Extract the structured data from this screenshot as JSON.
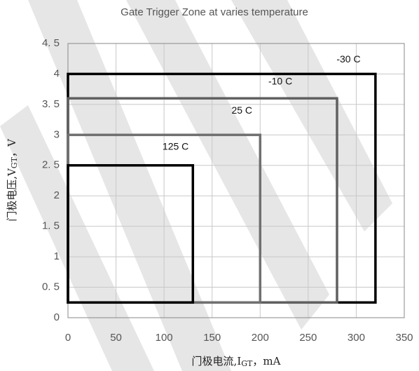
{
  "chart_data": {
    "type": "zone",
    "title": "Gate Trigger Zone at varies temperature",
    "xlabel": [
      "门极电流,I",
      "GT",
      "，mA"
    ],
    "ylabel": [
      "门极电压,V",
      "GT",
      "，V"
    ],
    "xlim": [
      0,
      350
    ],
    "xticks": [
      0,
      50,
      100,
      150,
      200,
      250,
      300,
      350
    ],
    "ylim": [
      0,
      4.5
    ],
    "yticks": [
      0,
      {
        "value": 0.5,
        "label": "0. 5"
      },
      1,
      {
        "value": 1.5,
        "label": "1. 5"
      },
      2,
      {
        "value": 2.5,
        "label": "2. 5"
      },
      3,
      {
        "value": 3.5,
        "label": "3. 5"
      },
      4,
      {
        "value": 4.5,
        "label": "4. 5"
      }
    ],
    "grid": true,
    "series": [
      {
        "name": "-30 C",
        "color": "#000000",
        "xmax": 320,
        "ymin": 0.25,
        "ymax": 4
      },
      {
        "name": "-10 C",
        "color": "#606060",
        "xmax": 280,
        "ymin": 0.25,
        "ymax": 3.6
      },
      {
        "name": "25 C",
        "color": "#707070",
        "xmax": 200,
        "ymin": 0.25,
        "ymax": 3
      },
      {
        "name": "125 C",
        "color": "#000000",
        "xmax": 130,
        "ymin": 0.25,
        "ymax": 2.5
      }
    ]
  }
}
